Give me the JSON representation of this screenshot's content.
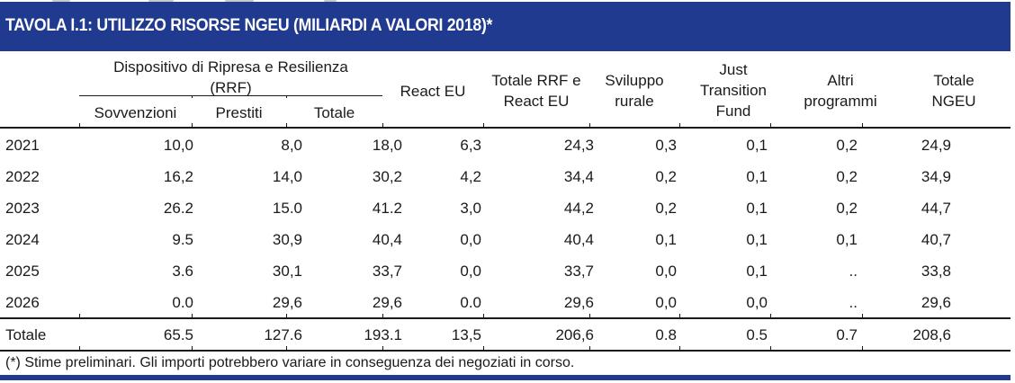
{
  "title": "TAVOLA I.1: UTILIZZO RISORSE NGEU (MILIARDI A VALORI 2018)*",
  "colors": {
    "brand_blue": "#1f3a8f",
    "text": "#1a1a1a",
    "rule": "#1a1a1a"
  },
  "header": {
    "group_rrf": "Dispositivo di Ripresa e Resilienza (RRF)",
    "group_rrf_line1": "Dispositivo di Ripresa e Resilienza",
    "group_rrf_line2": "(RRF)",
    "sovvenzioni": "Sovvenzioni",
    "prestiti": "Prestiti",
    "totale_rrf": "Totale",
    "react_eu": "React EU",
    "totale_rrf_react_line1": "Totale RRF e",
    "totale_rrf_react_line2": "React EU",
    "sviluppo_line1": "Sviluppo",
    "sviluppo_line2": "rurale",
    "jtf_line1": "Just",
    "jtf_line2": "Transition",
    "jtf_line3": "Fund",
    "altri_line1": "Altri",
    "altri_line2": "programmi",
    "totale_ngeu_line1": "Totale",
    "totale_ngeu_line2": "NGEU"
  },
  "rows": [
    {
      "year": "2021",
      "sovvenzioni": "10,0",
      "prestiti": "8,0",
      "totale": "18,0",
      "react_eu": "6,3",
      "totale_rrf_react": "24,3",
      "sviluppo_rurale": "0,3",
      "jtf": "0,1",
      "altri": "0,2",
      "totale_ngeu": "24,9"
    },
    {
      "year": "2022",
      "sovvenzioni": "16,2",
      "prestiti": "14,0",
      "totale": "30,2",
      "react_eu": "4,2",
      "totale_rrf_react": "34,4",
      "sviluppo_rurale": "0,2",
      "jtf": "0,1",
      "altri": "0,2",
      "totale_ngeu": "34,9"
    },
    {
      "year": "2023",
      "sovvenzioni": "26.2",
      "prestiti": "15.0",
      "totale": "41.2",
      "react_eu": "3,0",
      "totale_rrf_react": "44,2",
      "sviluppo_rurale": "0,2",
      "jtf": "0,1",
      "altri": "0,2",
      "totale_ngeu": "44,7"
    },
    {
      "year": "2024",
      "sovvenzioni": "9.5",
      "prestiti": "30,9",
      "totale": "40,4",
      "react_eu": "0,0",
      "totale_rrf_react": "40,4",
      "sviluppo_rurale": "0,1",
      "jtf": "0,1",
      "altri": "0,1",
      "totale_ngeu": "40,7"
    },
    {
      "year": "2025",
      "sovvenzioni": "3.6",
      "prestiti": "30,1",
      "totale": "33,7",
      "react_eu": "0,0",
      "totale_rrf_react": "33,7",
      "sviluppo_rurale": "0,0",
      "jtf": "0,1",
      "altri": "..",
      "totale_ngeu": "33,8"
    },
    {
      "year": "2026",
      "sovvenzioni": "0.0",
      "prestiti": "29,6",
      "totale": "29,6",
      "react_eu": "0.0",
      "totale_rrf_react": "29,6",
      "sviluppo_rurale": "0,0",
      "jtf": "0,0",
      "altri": "..",
      "totale_ngeu": "29,6"
    }
  ],
  "total_row": {
    "year": "Totale",
    "sovvenzioni": "65.5",
    "prestiti": "127.6",
    "totale": "193.1",
    "react_eu": "13,5",
    "totale_rrf_react": "206,6",
    "sviluppo_rurale": "0.8",
    "jtf": "0.5",
    "altri": "0.7",
    "totale_ngeu": "208,6"
  },
  "footnote": "(*) Stime preliminari. Gli importi potrebbero variare in conseguenza dei negoziati in corso."
}
